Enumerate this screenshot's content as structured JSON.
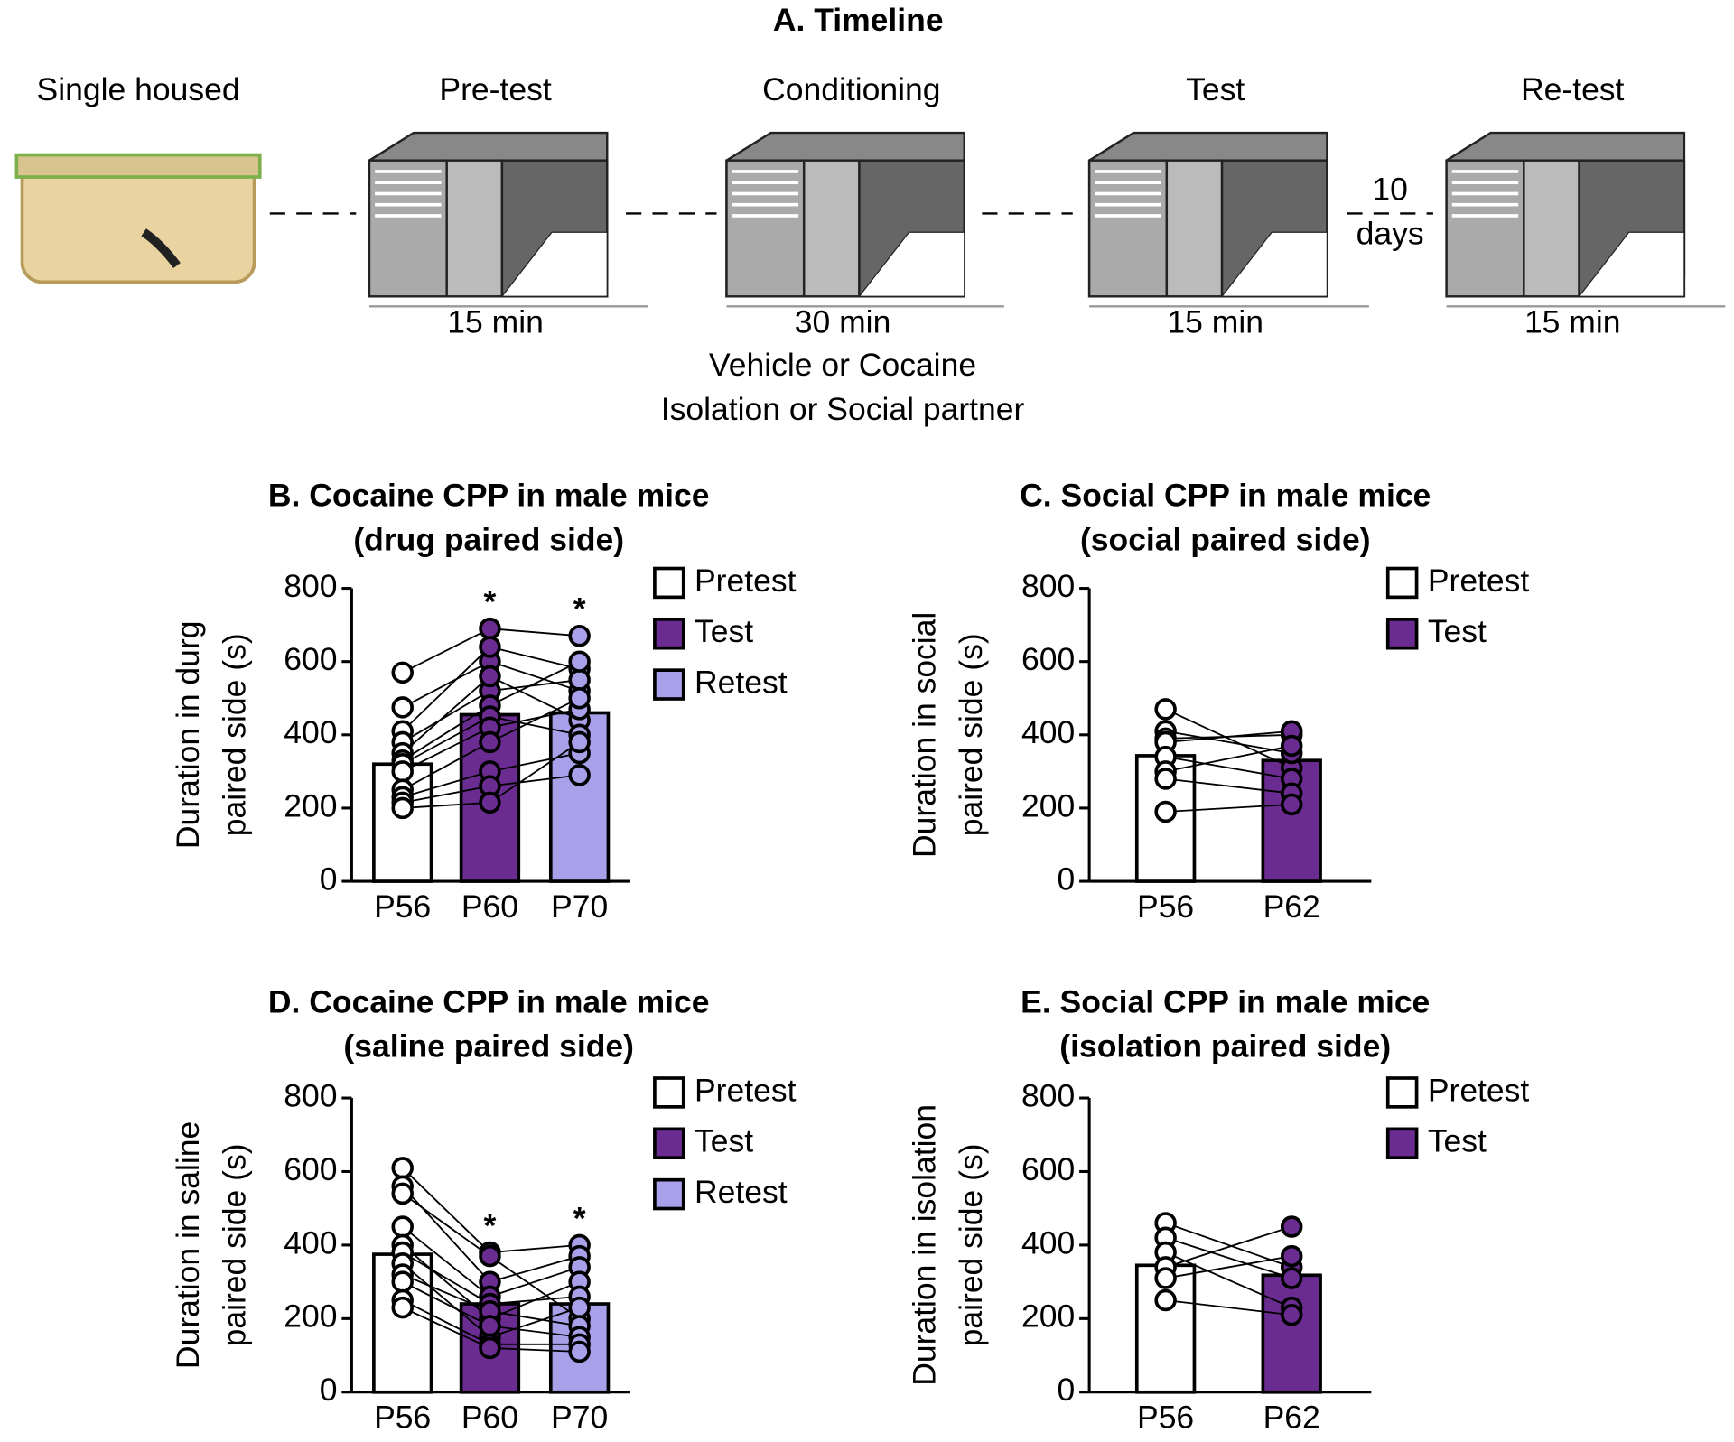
{
  "timeline": {
    "title": "A. Timeline",
    "stages": [
      {
        "label": "Single housed"
      },
      {
        "label": "Pre-test",
        "duration": "15 min"
      },
      {
        "label": "Conditioning",
        "duration": "30 min",
        "notes": [
          "Vehicle or Cocaine",
          "Isolation or Social partner"
        ]
      },
      {
        "label": "Test",
        "duration": "15 min"
      },
      {
        "label": "Re-test",
        "duration": "15 min"
      }
    ],
    "gap": [
      "10",
      "days"
    ]
  },
  "chart_data": [
    {
      "type": "bar",
      "title": [
        "B. Cocaine CPP in male mice",
        "(drug paired side)"
      ],
      "ylabel": [
        "Duration in durg",
        "paired side (s)"
      ],
      "categories": [
        "P56",
        "P60",
        "P70"
      ],
      "legend": [
        "Pretest",
        "Test",
        "Retest"
      ],
      "colors": [
        "#ffffff",
        "#6b2c91",
        "#a9a0ea"
      ],
      "values": [
        320,
        455,
        460
      ],
      "significance": [
        null,
        "*",
        "*"
      ],
      "subjects": [
        [
          570,
          690,
          670
        ],
        [
          475,
          600,
          520
        ],
        [
          410,
          640,
          580
        ],
        [
          380,
          520,
          550
        ],
        [
          350,
          560,
          440
        ],
        [
          330,
          480,
          600
        ],
        [
          320,
          450,
          400
        ],
        [
          300,
          420,
          470
        ],
        [
          250,
          380,
          500
        ],
        [
          230,
          300,
          350
        ],
        [
          215,
          260,
          290
        ],
        [
          200,
          215,
          380
        ]
      ],
      "ylim": [
        0,
        800
      ],
      "yticks": [
        0,
        200,
        400,
        600,
        800
      ]
    },
    {
      "type": "bar",
      "title": [
        "C. Social CPP in male mice",
        "(social paired side)"
      ],
      "ylabel": [
        "Duration in social",
        "paired side (s)"
      ],
      "categories": [
        "P56",
        "P62"
      ],
      "legend": [
        "Pretest",
        "Test"
      ],
      "colors": [
        "#ffffff",
        "#6b2c91"
      ],
      "values": [
        343,
        330
      ],
      "significance": [
        null,
        null
      ],
      "subjects": [
        [
          470,
          310
        ],
        [
          410,
          350
        ],
        [
          390,
          400
        ],
        [
          380,
          410
        ],
        [
          340,
          280
        ],
        [
          300,
          370
        ],
        [
          280,
          240
        ],
        [
          190,
          210
        ]
      ],
      "ylim": [
        0,
        800
      ],
      "yticks": [
        0,
        200,
        400,
        600,
        800
      ]
    },
    {
      "type": "bar",
      "title": [
        "D. Cocaine CPP in male mice",
        "(saline paired side)"
      ],
      "ylabel": [
        "Duration in saline",
        "paired side (s)"
      ],
      "categories": [
        "P56",
        "P60",
        "P70"
      ],
      "legend": [
        "Pretest",
        "Test",
        "Retest"
      ],
      "colors": [
        "#ffffff",
        "#6b2c91",
        "#a9a0ea"
      ],
      "values": [
        375,
        240,
        240
      ],
      "significance": [
        null,
        "*",
        "*"
      ],
      "subjects": [
        [
          610,
          380,
          400
        ],
        [
          560,
          300,
          370
        ],
        [
          540,
          370,
          200
        ],
        [
          450,
          260,
          340
        ],
        [
          400,
          200,
          300
        ],
        [
          380,
          240,
          260
        ],
        [
          350,
          150,
          230
        ],
        [
          320,
          220,
          180
        ],
        [
          300,
          180,
          150
        ],
        [
          250,
          130,
          130
        ],
        [
          230,
          120,
          110
        ]
      ],
      "ylim": [
        0,
        800
      ],
      "yticks": [
        0,
        200,
        400,
        600,
        800
      ]
    },
    {
      "type": "bar",
      "title": [
        "E. Social CPP in male mice",
        "(isolation paired side)"
      ],
      "ylabel": [
        "Duration in isolation",
        "paired side (s)"
      ],
      "categories": [
        "P56",
        "P62"
      ],
      "legend": [
        "Pretest",
        "Test"
      ],
      "colors": [
        "#ffffff",
        "#6b2c91"
      ],
      "values": [
        345,
        318
      ],
      "significance": [
        null,
        null
      ],
      "subjects": [
        [
          460,
          340
        ],
        [
          420,
          310
        ],
        [
          380,
          230
        ],
        [
          340,
          450
        ],
        [
          310,
          370
        ],
        [
          250,
          210
        ]
      ],
      "ylim": [
        0,
        800
      ],
      "yticks": [
        0,
        200,
        400,
        600,
        800
      ]
    }
  ]
}
